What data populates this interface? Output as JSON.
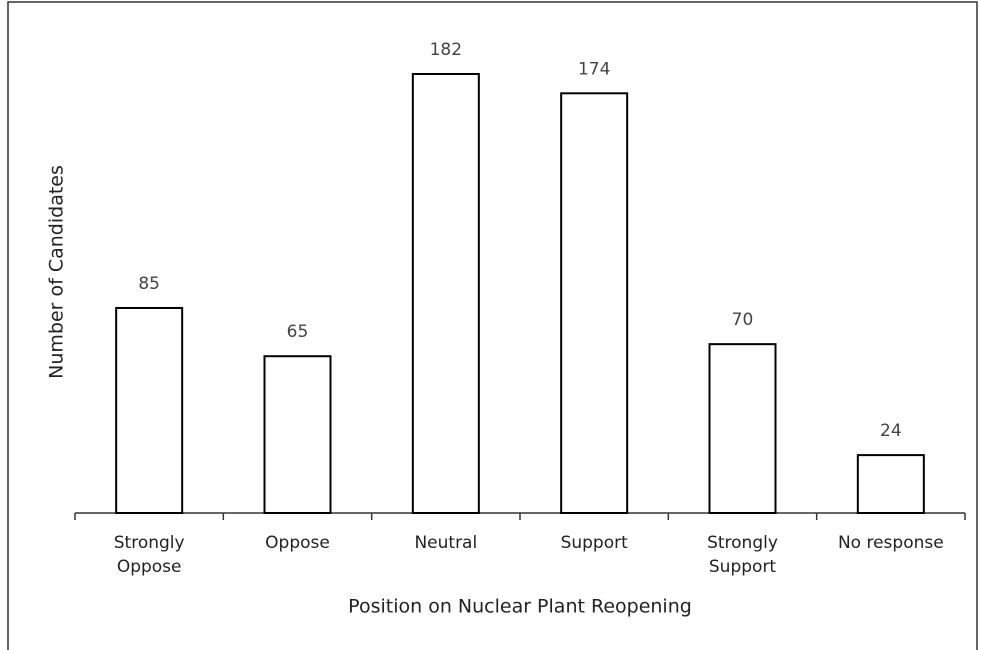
{
  "chart_data": {
    "type": "bar",
    "xlabel": "Position on Nuclear Plant Reopening",
    "ylabel": "Number of Candidates",
    "categories": [
      "Strongly\nOppose",
      "Oppose",
      "Neutral",
      "Support",
      "Strongly\nSupport",
      "No response"
    ],
    "values": [
      85,
      65,
      182,
      174,
      70,
      24
    ],
    "color": "#ffffff"
  }
}
